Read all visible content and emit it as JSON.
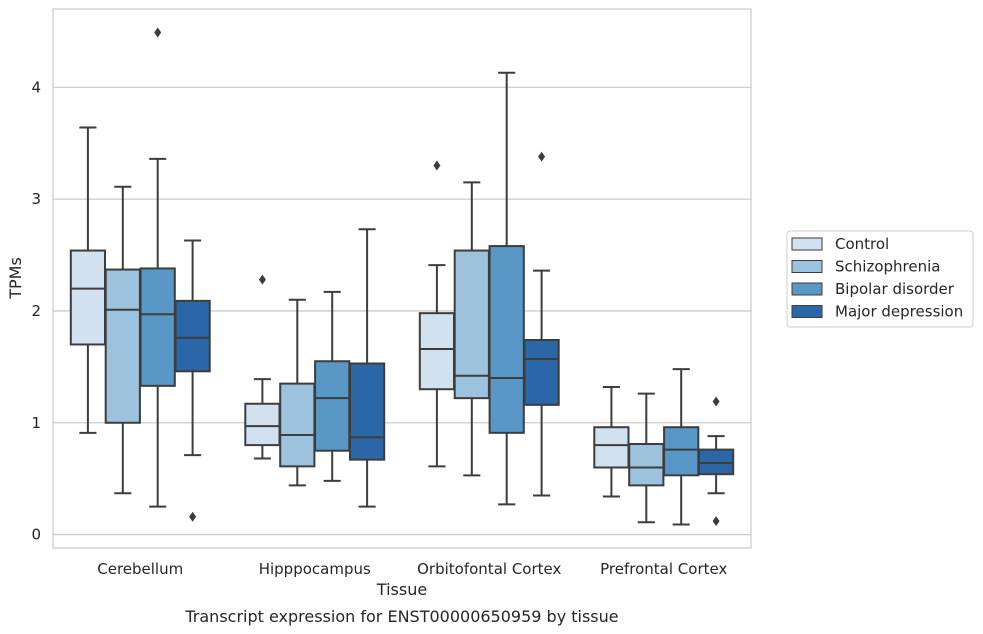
{
  "chart_data": {
    "type": "box",
    "caption": "Transcript expression for ENST00000650959 by tissue",
    "xlabel": "Tissue",
    "ylabel": "TPMs",
    "ylim": [
      -0.12,
      4.7
    ],
    "yticks": [
      0,
      1,
      2,
      3,
      4
    ],
    "grid": "horizontal",
    "legend_position": "right",
    "categories": [
      "Cerebellum",
      "Hipppocampus",
      "Orbitofontal Cortex",
      "Prefrontal Cortex"
    ],
    "series": [
      {
        "name": "Control",
        "color": "#d1e1f0",
        "boxes": [
          {
            "whisker_low": 0.91,
            "q1": 1.7,
            "median": 2.2,
            "q3": 2.54,
            "whisker_high": 3.64,
            "outliers": []
          },
          {
            "whisker_low": 0.68,
            "q1": 0.8,
            "median": 0.97,
            "q3": 1.17,
            "whisker_high": 1.39,
            "outliers": [
              2.28
            ]
          },
          {
            "whisker_low": 0.61,
            "q1": 1.3,
            "median": 1.66,
            "q3": 1.98,
            "whisker_high": 2.41,
            "outliers": [
              3.3
            ]
          },
          {
            "whisker_low": 0.34,
            "q1": 0.6,
            "median": 0.8,
            "q3": 0.96,
            "whisker_high": 1.32,
            "outliers": []
          }
        ]
      },
      {
        "name": "Schizophrenia",
        "color": "#9cc2dd",
        "boxes": [
          {
            "whisker_low": 0.37,
            "q1": 1.0,
            "median": 2.01,
            "q3": 2.37,
            "whisker_high": 3.11,
            "outliers": []
          },
          {
            "whisker_low": 0.44,
            "q1": 0.61,
            "median": 0.89,
            "q3": 1.35,
            "whisker_high": 2.1,
            "outliers": []
          },
          {
            "whisker_low": 0.53,
            "q1": 1.22,
            "median": 1.42,
            "q3": 2.54,
            "whisker_high": 3.15,
            "outliers": []
          },
          {
            "whisker_low": 0.11,
            "q1": 0.44,
            "median": 0.6,
            "q3": 0.81,
            "whisker_high": 1.26,
            "outliers": []
          }
        ]
      },
      {
        "name": "Bipolar disorder",
        "color": "#5998c6",
        "boxes": [
          {
            "whisker_low": 0.25,
            "q1": 1.33,
            "median": 1.97,
            "q3": 2.38,
            "whisker_high": 3.36,
            "outliers": [
              4.49
            ]
          },
          {
            "whisker_low": 0.48,
            "q1": 0.75,
            "median": 1.22,
            "q3": 1.55,
            "whisker_high": 2.17,
            "outliers": []
          },
          {
            "whisker_low": 0.27,
            "q1": 0.91,
            "median": 1.4,
            "q3": 2.58,
            "whisker_high": 4.13,
            "outliers": []
          },
          {
            "whisker_low": 0.09,
            "q1": 0.53,
            "median": 0.76,
            "q3": 0.96,
            "whisker_high": 1.48,
            "outliers": []
          }
        ]
      },
      {
        "name": "Major depression",
        "color": "#2b66a6",
        "boxes": [
          {
            "whisker_low": 0.71,
            "q1": 1.46,
            "median": 1.76,
            "q3": 2.09,
            "whisker_high": 2.63,
            "outliers": [
              0.16
            ]
          },
          {
            "whisker_low": 0.25,
            "q1": 0.67,
            "median": 0.87,
            "q3": 1.53,
            "whisker_high": 2.73,
            "outliers": []
          },
          {
            "whisker_low": 0.35,
            "q1": 1.16,
            "median": 1.57,
            "q3": 1.74,
            "whisker_high": 2.36,
            "outliers": [
              3.38
            ]
          },
          {
            "whisker_low": 0.37,
            "q1": 0.54,
            "median": 0.64,
            "q3": 0.76,
            "whisker_high": 0.88,
            "outliers": [
              1.19,
              0.12
            ]
          }
        ]
      }
    ]
  }
}
